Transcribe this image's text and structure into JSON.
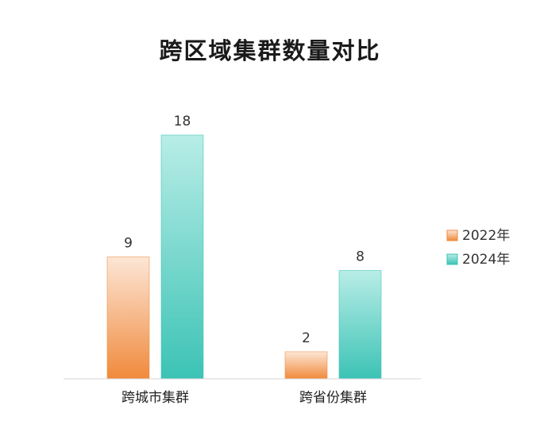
{
  "chart_data": {
    "type": "bar",
    "title": "跨区域集群数量对比",
    "categories": [
      "跨城市集群",
      "跨省份集群"
    ],
    "series": [
      {
        "name": "2022年",
        "values": [
          9,
          2
        ],
        "color": "#f08a3c",
        "color_light": "#fde6d6"
      },
      {
        "name": "2024年",
        "values": [
          18,
          8
        ],
        "color": "#3cc3b5",
        "color_light": "#b8ede7"
      }
    ],
    "ylim": [
      0,
      18
    ],
    "grid": false,
    "legend": "right"
  }
}
